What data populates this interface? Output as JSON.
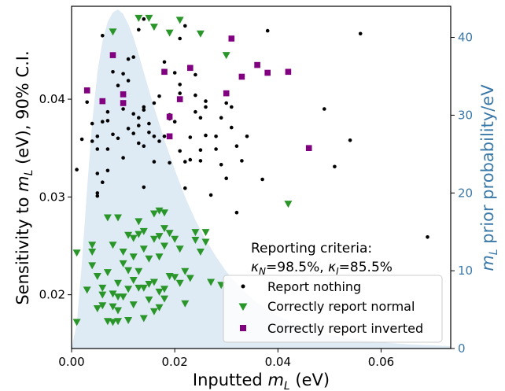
{
  "chart_data": {
    "type": "scatter",
    "xlabel": "Inputted m_L (eV)",
    "ylabel": "Sensitivity to m_L (eV), 90% C.I.",
    "y2label": "m_L prior probability/eV",
    "xlim": [
      0,
      0.0735
    ],
    "ylim": [
      0.0145,
      0.0495
    ],
    "y2lim": [
      0,
      44
    ],
    "xticks": [
      0.0,
      0.02,
      0.04,
      0.06
    ],
    "xtick_labels": [
      "0.00",
      "0.02",
      "0.04",
      "0.06"
    ],
    "yticks": [
      0.02,
      0.03,
      0.04
    ],
    "ytick_labels": [
      "0.02",
      "0.03",
      "0.04"
    ],
    "y2ticks": [
      0,
      10,
      20,
      30,
      40
    ],
    "y2tick_labels": [
      "0",
      "10",
      "20",
      "30",
      "40"
    ],
    "grid": false,
    "annotation": {
      "title": "Reporting criteria:",
      "kappa_N": "98.5%",
      "kappa_I": "85.5%"
    },
    "legend": {
      "placement": "lower-right",
      "entries": [
        "Report nothing",
        "Correctly report normal",
        "Correctly report inverted"
      ]
    },
    "colors": {
      "nothing": "#000000",
      "normal": "#2a962a",
      "inverted": "#800080",
      "prior_fill": "#deeaf4",
      "right_axis": "#3a78a8"
    },
    "prior_curve": {
      "x": [
        0.0,
        0.001,
        0.002,
        0.003,
        0.004,
        0.005,
        0.006,
        0.007,
        0.008,
        0.009,
        0.01,
        0.011,
        0.012,
        0.013,
        0.014,
        0.015,
        0.016,
        0.017,
        0.018,
        0.019,
        0.02,
        0.022,
        0.024,
        0.026,
        0.028,
        0.03,
        0.032,
        0.034,
        0.036,
        0.038,
        0.04,
        0.042,
        0.044,
        0.046,
        0.048,
        0.05,
        0.055,
        0.06,
        0.065,
        0.07,
        0.0735
      ],
      "y": [
        0.0,
        3.2,
        11.0,
        20.5,
        29.0,
        35.5,
        39.5,
        42.0,
        43.2,
        43.6,
        43.0,
        41.7,
        40.0,
        37.8,
        35.5,
        33.2,
        31.0,
        28.9,
        26.8,
        24.9,
        23.0,
        19.5,
        16.5,
        14.0,
        11.8,
        9.9,
        8.3,
        7.0,
        5.9,
        5.0,
        4.2,
        3.5,
        3.0,
        2.5,
        2.1,
        1.8,
        1.2,
        0.8,
        0.55,
        0.4,
        0.3
      ]
    },
    "series": [
      {
        "name": "Report nothing",
        "marker": "dot",
        "points": [
          [
            0.001,
            0.0328
          ],
          [
            0.002,
            0.0359
          ],
          [
            0.003,
            0.0397
          ],
          [
            0.004,
            0.0375
          ],
          [
            0.004,
            0.0357
          ],
          [
            0.005,
            0.0362
          ],
          [
            0.005,
            0.0349
          ],
          [
            0.005,
            0.0304
          ],
          [
            0.005,
            0.0301
          ],
          [
            0.005,
            0.0324
          ],
          [
            0.006,
            0.0377
          ],
          [
            0.006,
            0.0315
          ],
          [
            0.006,
            0.0465
          ],
          [
            0.007,
            0.0378
          ],
          [
            0.007,
            0.0349
          ],
          [
            0.007,
            0.0327
          ],
          [
            0.007,
            0.0387
          ],
          [
            0.008,
            0.0364
          ],
          [
            0.008,
            0.0428
          ],
          [
            0.009,
            0.036
          ],
          [
            0.009,
            0.0414
          ],
          [
            0.01,
            0.0426
          ],
          [
            0.01,
            0.039
          ],
          [
            0.01,
            0.034
          ],
          [
            0.011,
            0.037
          ],
          [
            0.011,
            0.0441
          ],
          [
            0.011,
            0.0419
          ],
          [
            0.012,
            0.0385
          ],
          [
            0.012,
            0.0365
          ],
          [
            0.012,
            0.0443
          ],
          [
            0.013,
            0.0381
          ],
          [
            0.013,
            0.0355
          ],
          [
            0.013,
            0.0373
          ],
          [
            0.013,
            0.0471
          ],
          [
            0.014,
            0.0482
          ],
          [
            0.014,
            0.0389
          ],
          [
            0.014,
            0.0392
          ],
          [
            0.014,
            0.031
          ],
          [
            0.014,
            0.0352
          ],
          [
            0.015,
            0.0366
          ],
          [
            0.015,
            0.0375
          ],
          [
            0.016,
            0.0396
          ],
          [
            0.016,
            0.0336
          ],
          [
            0.016,
            0.0362
          ],
          [
            0.017,
            0.0403
          ],
          [
            0.017,
            0.0357
          ],
          [
            0.018,
            0.0438
          ],
          [
            0.018,
            0.0362
          ],
          [
            0.019,
            0.0335
          ],
          [
            0.019,
            0.0384
          ],
          [
            0.019,
            0.038
          ],
          [
            0.02,
            0.0427
          ],
          [
            0.02,
            0.0377
          ],
          [
            0.021,
            0.0415
          ],
          [
            0.021,
            0.0406
          ],
          [
            0.021,
            0.0462
          ],
          [
            0.021,
            0.0347
          ],
          [
            0.022,
            0.0475
          ],
          [
            0.022,
            0.0309
          ],
          [
            0.022,
            0.0336
          ],
          [
            0.023,
            0.0338
          ],
          [
            0.023,
            0.0361
          ],
          [
            0.024,
            0.0404
          ],
          [
            0.024,
            0.0387
          ],
          [
            0.024,
            0.0425
          ],
          [
            0.025,
            0.0381
          ],
          [
            0.025,
            0.0337
          ],
          [
            0.025,
            0.0348
          ],
          [
            0.026,
            0.0363
          ],
          [
            0.026,
            0.0392
          ],
          [
            0.026,
            0.0398
          ],
          [
            0.027,
            0.0302
          ],
          [
            0.028,
            0.0349
          ],
          [
            0.028,
            0.0362
          ],
          [
            0.029,
            0.0381
          ],
          [
            0.029,
            0.0333
          ],
          [
            0.03,
            0.0396
          ],
          [
            0.03,
            0.0319
          ],
          [
            0.031,
            0.0371
          ],
          [
            0.031,
            0.0392
          ],
          [
            0.032,
            0.0352
          ],
          [
            0.032,
            0.0284
          ],
          [
            0.033,
            0.0337
          ],
          [
            0.034,
            0.0362
          ],
          [
            0.037,
            0.0318
          ],
          [
            0.038,
            0.047
          ],
          [
            0.049,
            0.039
          ],
          [
            0.051,
            0.0331
          ],
          [
            0.054,
            0.0358
          ],
          [
            0.056,
            0.0467
          ],
          [
            0.069,
            0.0259
          ]
        ]
      },
      {
        "name": "Correctly report normal",
        "marker": "triangle-down",
        "points": [
          [
            0.001,
            0.0172
          ],
          [
            0.001,
            0.0243
          ],
          [
            0.003,
            0.0205
          ],
          [
            0.004,
            0.0251
          ],
          [
            0.004,
            0.0244
          ],
          [
            0.004,
            0.023
          ],
          [
            0.005,
            0.0219
          ],
          [
            0.005,
            0.0186
          ],
          [
            0.006,
            0.0207
          ],
          [
            0.006,
            0.0189
          ],
          [
            0.006,
            0.02
          ],
          [
            0.007,
            0.0279
          ],
          [
            0.007,
            0.0223
          ],
          [
            0.007,
            0.0173
          ],
          [
            0.008,
            0.0251
          ],
          [
            0.008,
            0.0201
          ],
          [
            0.008,
            0.0188
          ],
          [
            0.008,
            0.0172
          ],
          [
            0.008,
            0.0469
          ],
          [
            0.009,
            0.0279
          ],
          [
            0.009,
            0.0212
          ],
          [
            0.009,
            0.0198
          ],
          [
            0.009,
            0.0184
          ],
          [
            0.009,
            0.0173
          ],
          [
            0.01,
            0.0232
          ],
          [
            0.01,
            0.0244
          ],
          [
            0.01,
            0.0198
          ],
          [
            0.011,
            0.0261
          ],
          [
            0.011,
            0.0225
          ],
          [
            0.011,
            0.0206
          ],
          [
            0.011,
            0.0174
          ],
          [
            0.012,
            0.0258
          ],
          [
            0.012,
            0.0239
          ],
          [
            0.012,
            0.0215
          ],
          [
            0.012,
            0.019
          ],
          [
            0.013,
            0.0275
          ],
          [
            0.013,
            0.0262
          ],
          [
            0.013,
            0.0224
          ],
          [
            0.013,
            0.0207
          ],
          [
            0.013,
            0.0483
          ],
          [
            0.014,
            0.0265
          ],
          [
            0.014,
            0.0247
          ],
          [
            0.014,
            0.0207
          ],
          [
            0.014,
            0.0176
          ],
          [
            0.015,
            0.0237
          ],
          [
            0.015,
            0.0211
          ],
          [
            0.015,
            0.0195
          ],
          [
            0.015,
            0.0483
          ],
          [
            0.016,
            0.0283
          ],
          [
            0.016,
            0.0257
          ],
          [
            0.016,
            0.0213
          ],
          [
            0.016,
            0.0183
          ],
          [
            0.016,
            0.0474
          ],
          [
            0.017,
            0.0286
          ],
          [
            0.017,
            0.026
          ],
          [
            0.017,
            0.0239
          ],
          [
            0.017,
            0.0203
          ],
          [
            0.017,
            0.0187
          ],
          [
            0.018,
            0.0284
          ],
          [
            0.018,
            0.0268
          ],
          [
            0.018,
            0.025
          ],
          [
            0.018,
            0.0206
          ],
          [
            0.018,
            0.0196
          ],
          [
            0.019,
            0.0263
          ],
          [
            0.019,
            0.0219
          ],
          [
            0.019,
            0.0468
          ],
          [
            0.02,
            0.0257
          ],
          [
            0.02,
            0.0218
          ],
          [
            0.021,
            0.0247
          ],
          [
            0.021,
            0.0212
          ],
          [
            0.021,
            0.0481
          ],
          [
            0.022,
            0.0224
          ],
          [
            0.022,
            0.0191
          ],
          [
            0.023,
            0.0217
          ],
          [
            0.024,
            0.0264
          ],
          [
            0.024,
            0.0256
          ],
          [
            0.025,
            0.0244
          ],
          [
            0.025,
            0.0467
          ],
          [
            0.026,
            0.0264
          ],
          [
            0.026,
            0.0254
          ],
          [
            0.027,
            0.0213
          ],
          [
            0.029,
            0.021
          ],
          [
            0.03,
            0.0445
          ],
          [
            0.042,
            0.0293
          ]
        ]
      },
      {
        "name": "Correctly report inverted",
        "marker": "square",
        "points": [
          [
            0.003,
            0.0409
          ],
          [
            0.006,
            0.0398
          ],
          [
            0.008,
            0.0445
          ],
          [
            0.01,
            0.0405
          ],
          [
            0.01,
            0.0396
          ],
          [
            0.018,
            0.0428
          ],
          [
            0.019,
            0.0362
          ],
          [
            0.019,
            0.0382
          ],
          [
            0.021,
            0.04
          ],
          [
            0.023,
            0.0432
          ],
          [
            0.03,
            0.0406
          ],
          [
            0.031,
            0.0462
          ],
          [
            0.033,
            0.0423
          ],
          [
            0.036,
            0.0435
          ],
          [
            0.038,
            0.0427
          ],
          [
            0.042,
            0.0428
          ],
          [
            0.046,
            0.035
          ]
        ]
      }
    ]
  }
}
